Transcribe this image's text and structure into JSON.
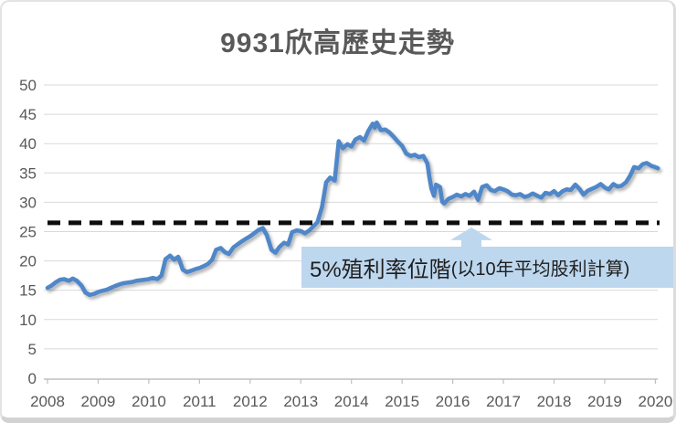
{
  "title": "9931欣高歷史走勢",
  "annotation": {
    "main": "5%殖利率位階",
    "sub": "(以10年平均股利計算)"
  },
  "colors": {
    "line": "#4f87c9",
    "grid": "#d9d9d9",
    "axis": "#bfbfbf",
    "tick_label": "#595959",
    "title": "#595959",
    "dashed_line": "#0d0d0d",
    "annotation_bg": "#bdd7ee",
    "annotation_text": "#1f1f1f"
  },
  "chart_data": {
    "type": "line",
    "title": "9931欣高歷史走勢",
    "xlabel": "",
    "ylabel": "",
    "xticks": [
      2008,
      2009,
      2010,
      2011,
      2012,
      2013,
      2014,
      2015,
      2016,
      2017,
      2018,
      2019,
      2020
    ],
    "yticks": [
      0,
      5,
      10,
      15,
      20,
      25,
      30,
      35,
      40,
      45,
      50
    ],
    "xlim": [
      2008,
      2020.1
    ],
    "ylim": [
      0,
      50
    ],
    "grid": true,
    "legend": "none",
    "reference_line": {
      "value": 26.5,
      "style": "dashed",
      "color": "#0d0d0d",
      "label": "5%殖利率位階(以10年平均股利計算)"
    },
    "points": [
      [
        2008.0,
        15.4
      ],
      [
        2008.08,
        15.8
      ],
      [
        2008.17,
        16.4
      ],
      [
        2008.25,
        16.8
      ],
      [
        2008.33,
        16.9
      ],
      [
        2008.42,
        16.6
      ],
      [
        2008.5,
        17.0
      ],
      [
        2008.58,
        16.6
      ],
      [
        2008.67,
        15.8
      ],
      [
        2008.75,
        14.6
      ],
      [
        2008.83,
        14.2
      ],
      [
        2008.92,
        14.4
      ],
      [
        2009.0,
        14.7
      ],
      [
        2009.08,
        14.9
      ],
      [
        2009.17,
        15.1
      ],
      [
        2009.25,
        15.4
      ],
      [
        2009.33,
        15.7
      ],
      [
        2009.42,
        16.0
      ],
      [
        2009.5,
        16.2
      ],
      [
        2009.58,
        16.3
      ],
      [
        2009.67,
        16.4
      ],
      [
        2009.75,
        16.6
      ],
      [
        2009.83,
        16.7
      ],
      [
        2009.92,
        16.8
      ],
      [
        2010.0,
        16.9
      ],
      [
        2010.08,
        17.1
      ],
      [
        2010.17,
        16.9
      ],
      [
        2010.25,
        17.5
      ],
      [
        2010.33,
        20.3
      ],
      [
        2010.42,
        20.9
      ],
      [
        2010.5,
        20.2
      ],
      [
        2010.58,
        20.7
      ],
      [
        2010.67,
        18.5
      ],
      [
        2010.75,
        18.1
      ],
      [
        2010.83,
        18.3
      ],
      [
        2010.92,
        18.6
      ],
      [
        2011.0,
        18.8
      ],
      [
        2011.08,
        19.1
      ],
      [
        2011.17,
        19.5
      ],
      [
        2011.25,
        20.2
      ],
      [
        2011.33,
        21.9
      ],
      [
        2011.42,
        22.2
      ],
      [
        2011.5,
        21.5
      ],
      [
        2011.58,
        21.2
      ],
      [
        2011.67,
        22.3
      ],
      [
        2011.75,
        22.8
      ],
      [
        2011.83,
        23.3
      ],
      [
        2011.92,
        23.8
      ],
      [
        2012.0,
        24.2
      ],
      [
        2012.08,
        24.7
      ],
      [
        2012.17,
        25.3
      ],
      [
        2012.25,
        25.6
      ],
      [
        2012.33,
        24.4
      ],
      [
        2012.42,
        21.9
      ],
      [
        2012.5,
        21.4
      ],
      [
        2012.58,
        22.4
      ],
      [
        2012.67,
        23.1
      ],
      [
        2012.75,
        22.8
      ],
      [
        2012.83,
        24.9
      ],
      [
        2012.92,
        25.2
      ],
      [
        2013.0,
        25.1
      ],
      [
        2013.08,
        24.7
      ],
      [
        2013.17,
        25.2
      ],
      [
        2013.25,
        25.9
      ],
      [
        2013.33,
        26.6
      ],
      [
        2013.42,
        29.2
      ],
      [
        2013.5,
        33.4
      ],
      [
        2013.58,
        34.2
      ],
      [
        2013.67,
        33.7
      ],
      [
        2013.75,
        40.4
      ],
      [
        2013.83,
        39.2
      ],
      [
        2013.92,
        39.9
      ],
      [
        2014.0,
        39.5
      ],
      [
        2014.08,
        40.7
      ],
      [
        2014.17,
        41.1
      ],
      [
        2014.25,
        40.5
      ],
      [
        2014.33,
        42.1
      ],
      [
        2014.42,
        43.4
      ],
      [
        2014.46,
        42.7
      ],
      [
        2014.5,
        43.6
      ],
      [
        2014.58,
        42.3
      ],
      [
        2014.67,
        42.4
      ],
      [
        2014.75,
        41.9
      ],
      [
        2014.83,
        41.2
      ],
      [
        2014.92,
        40.3
      ],
      [
        2015.0,
        39.6
      ],
      [
        2015.08,
        38.3
      ],
      [
        2015.17,
        37.9
      ],
      [
        2015.25,
        38.1
      ],
      [
        2015.33,
        37.7
      ],
      [
        2015.42,
        37.9
      ],
      [
        2015.5,
        36.6
      ],
      [
        2015.54,
        34.2
      ],
      [
        2015.58,
        32.3
      ],
      [
        2015.63,
        31.1
      ],
      [
        2015.67,
        33.0
      ],
      [
        2015.75,
        32.6
      ],
      [
        2015.79,
        30.1
      ],
      [
        2015.83,
        29.8
      ],
      [
        2015.92,
        30.6
      ],
      [
        2016.0,
        30.9
      ],
      [
        2016.08,
        31.3
      ],
      [
        2016.17,
        31.0
      ],
      [
        2016.25,
        31.4
      ],
      [
        2016.33,
        31.1
      ],
      [
        2016.42,
        31.8
      ],
      [
        2016.5,
        30.4
      ],
      [
        2016.58,
        32.6
      ],
      [
        2016.67,
        32.9
      ],
      [
        2016.75,
        32.1
      ],
      [
        2016.83,
        31.9
      ],
      [
        2016.92,
        32.4
      ],
      [
        2017.0,
        32.2
      ],
      [
        2017.08,
        31.9
      ],
      [
        2017.17,
        31.3
      ],
      [
        2017.25,
        31.2
      ],
      [
        2017.33,
        31.4
      ],
      [
        2017.42,
        30.9
      ],
      [
        2017.5,
        31.1
      ],
      [
        2017.58,
        31.5
      ],
      [
        2017.67,
        31.1
      ],
      [
        2017.75,
        30.8
      ],
      [
        2017.83,
        31.6
      ],
      [
        2017.92,
        31.4
      ],
      [
        2018.0,
        31.9
      ],
      [
        2018.08,
        31.2
      ],
      [
        2018.17,
        31.9
      ],
      [
        2018.25,
        32.2
      ],
      [
        2018.33,
        32.1
      ],
      [
        2018.42,
        33.0
      ],
      [
        2018.5,
        32.3
      ],
      [
        2018.58,
        31.3
      ],
      [
        2018.67,
        32.0
      ],
      [
        2018.75,
        32.3
      ],
      [
        2018.83,
        32.6
      ],
      [
        2018.92,
        33.1
      ],
      [
        2019.0,
        32.5
      ],
      [
        2019.08,
        32.2
      ],
      [
        2019.17,
        33.1
      ],
      [
        2019.25,
        32.7
      ],
      [
        2019.33,
        32.8
      ],
      [
        2019.42,
        33.4
      ],
      [
        2019.5,
        34.5
      ],
      [
        2019.58,
        36.0
      ],
      [
        2019.67,
        35.8
      ],
      [
        2019.75,
        36.5
      ],
      [
        2019.83,
        36.7
      ],
      [
        2019.92,
        36.2
      ],
      [
        2020.0,
        36.0
      ],
      [
        2020.05,
        35.8
      ]
    ]
  }
}
